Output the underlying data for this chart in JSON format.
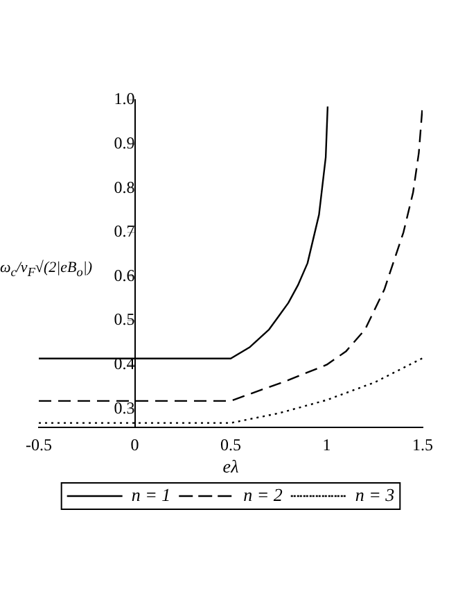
{
  "chart_data": {
    "type": "line",
    "xlabel": "eλ",
    "ylabel": "ω$_{c}$/v$_{F}$√(2|eB$_{o}$|)",
    "xlim": [
      -0.5,
      1.5
    ],
    "xticks": [
      -0.5,
      0,
      0.5,
      1,
      1.5
    ],
    "ylim": [
      0.258,
      1.0
    ],
    "yticks": [
      0.3,
      0.4,
      0.5,
      0.6,
      0.7,
      0.8,
      0.9,
      {
        "value": 1.0,
        "label": "1.0"
      }
    ],
    "grid": false,
    "legend": "bottom",
    "marker": "none",
    "series": [
      {
        "name": "n = 1",
        "color": "#000000",
        "line_style": "solid",
        "x": [
          -0.5,
          0.5,
          0.6,
          0.7,
          0.75,
          0.8,
          0.85,
          0.9,
          0.96,
          0.995,
          1.005
        ],
        "values": [
          0.414,
          0.414,
          0.44,
          0.48,
          0.51,
          0.54,
          0.58,
          0.63,
          0.74,
          0.87,
          0.985
        ]
      },
      {
        "name": "n = 2",
        "color": "#000000",
        "line_style": "dashed",
        "x": [
          -0.5,
          0.5,
          0.8,
          1.0,
          1.1,
          1.2,
          1.3,
          1.4,
          1.45,
          1.48,
          1.5
        ],
        "values": [
          0.318,
          0.318,
          0.365,
          0.4,
          0.43,
          0.48,
          0.57,
          0.7,
          0.79,
          0.88,
          0.99
        ]
      },
      {
        "name": "n = 3",
        "color": "#000000",
        "line_style": "dotted",
        "x": [
          -0.5,
          0.5,
          0.75,
          1.0,
          1.25,
          1.5
        ],
        "values": [
          0.268,
          0.268,
          0.29,
          0.32,
          0.36,
          0.415
        ]
      }
    ]
  }
}
